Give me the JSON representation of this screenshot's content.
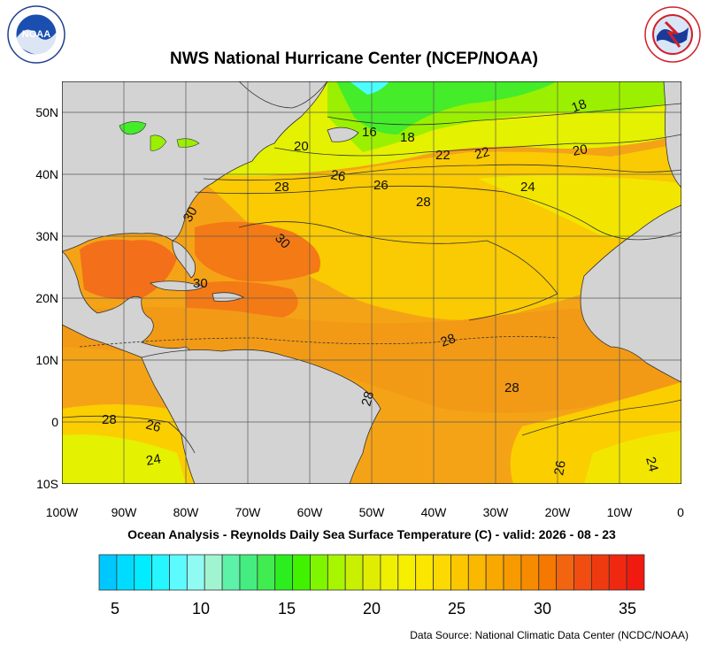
{
  "header": {
    "title": "NWS National Hurricane Center (NCEP/NOAA)",
    "noaa_logo": {
      "text": "NOAA",
      "ring_text": "U.S. DEPARTMENT OF COMMERCE",
      "icon": "noaa-logo-icon"
    },
    "nws_logo": {
      "ring_text": "NATIONAL WEATHER SERVICE",
      "icon": "nws-logo-icon"
    }
  },
  "map": {
    "y_axis_labels": [
      "50N",
      "40N",
      "30N",
      "20N",
      "10N",
      "0",
      "10S"
    ],
    "x_axis_labels": [
      "100W",
      "90W",
      "80W",
      "70W",
      "60W",
      "50W",
      "40W",
      "30W",
      "20W",
      "10W",
      "0"
    ],
    "contour_labels": [
      "18",
      "16",
      "18",
      "20",
      "22",
      "22",
      "20",
      "26",
      "26",
      "28",
      "24",
      "28",
      "30",
      "30",
      "30",
      "28",
      "28",
      "28",
      "28",
      "26",
      "24",
      "26",
      "24"
    ],
    "colors": {
      "land": "#d3d3d3",
      "warm": "#f29a16",
      "hot": "#f36f1a",
      "mid": "#fbce00",
      "cool": "#e4f100",
      "cold": "#44ec2a",
      "coldest": "#4dfdfd"
    }
  },
  "subtitle": "Ocean Analysis - Reynolds Daily Sea Surface Temperature (C) - valid: 2026 - 08 - 23",
  "colorbar": {
    "labels": [
      "5",
      "10",
      "15",
      "20",
      "25",
      "30",
      "35"
    ],
    "colors": [
      "#00c8ff",
      "#00dcff",
      "#00ecff",
      "#25f6ff",
      "#5cfbff",
      "#8ffbf2",
      "#a0f5d0",
      "#5cf2a8",
      "#45ec80",
      "#40ec50",
      "#2cee1e",
      "#40f200",
      "#80f500",
      "#a8f500",
      "#c8f000",
      "#e0ed00",
      "#eef000",
      "#f6ef00",
      "#fbe600",
      "#fcd900",
      "#fdc700",
      "#fbb800",
      "#f9a800",
      "#f79a00",
      "#f78b00",
      "#f57800",
      "#f36410",
      "#f14d10",
      "#ef3a10",
      "#f02810",
      "#f01a10"
    ]
  },
  "footer": {
    "source": "Data Source: National Climatic Data Center (NCDC/NOAA)"
  }
}
